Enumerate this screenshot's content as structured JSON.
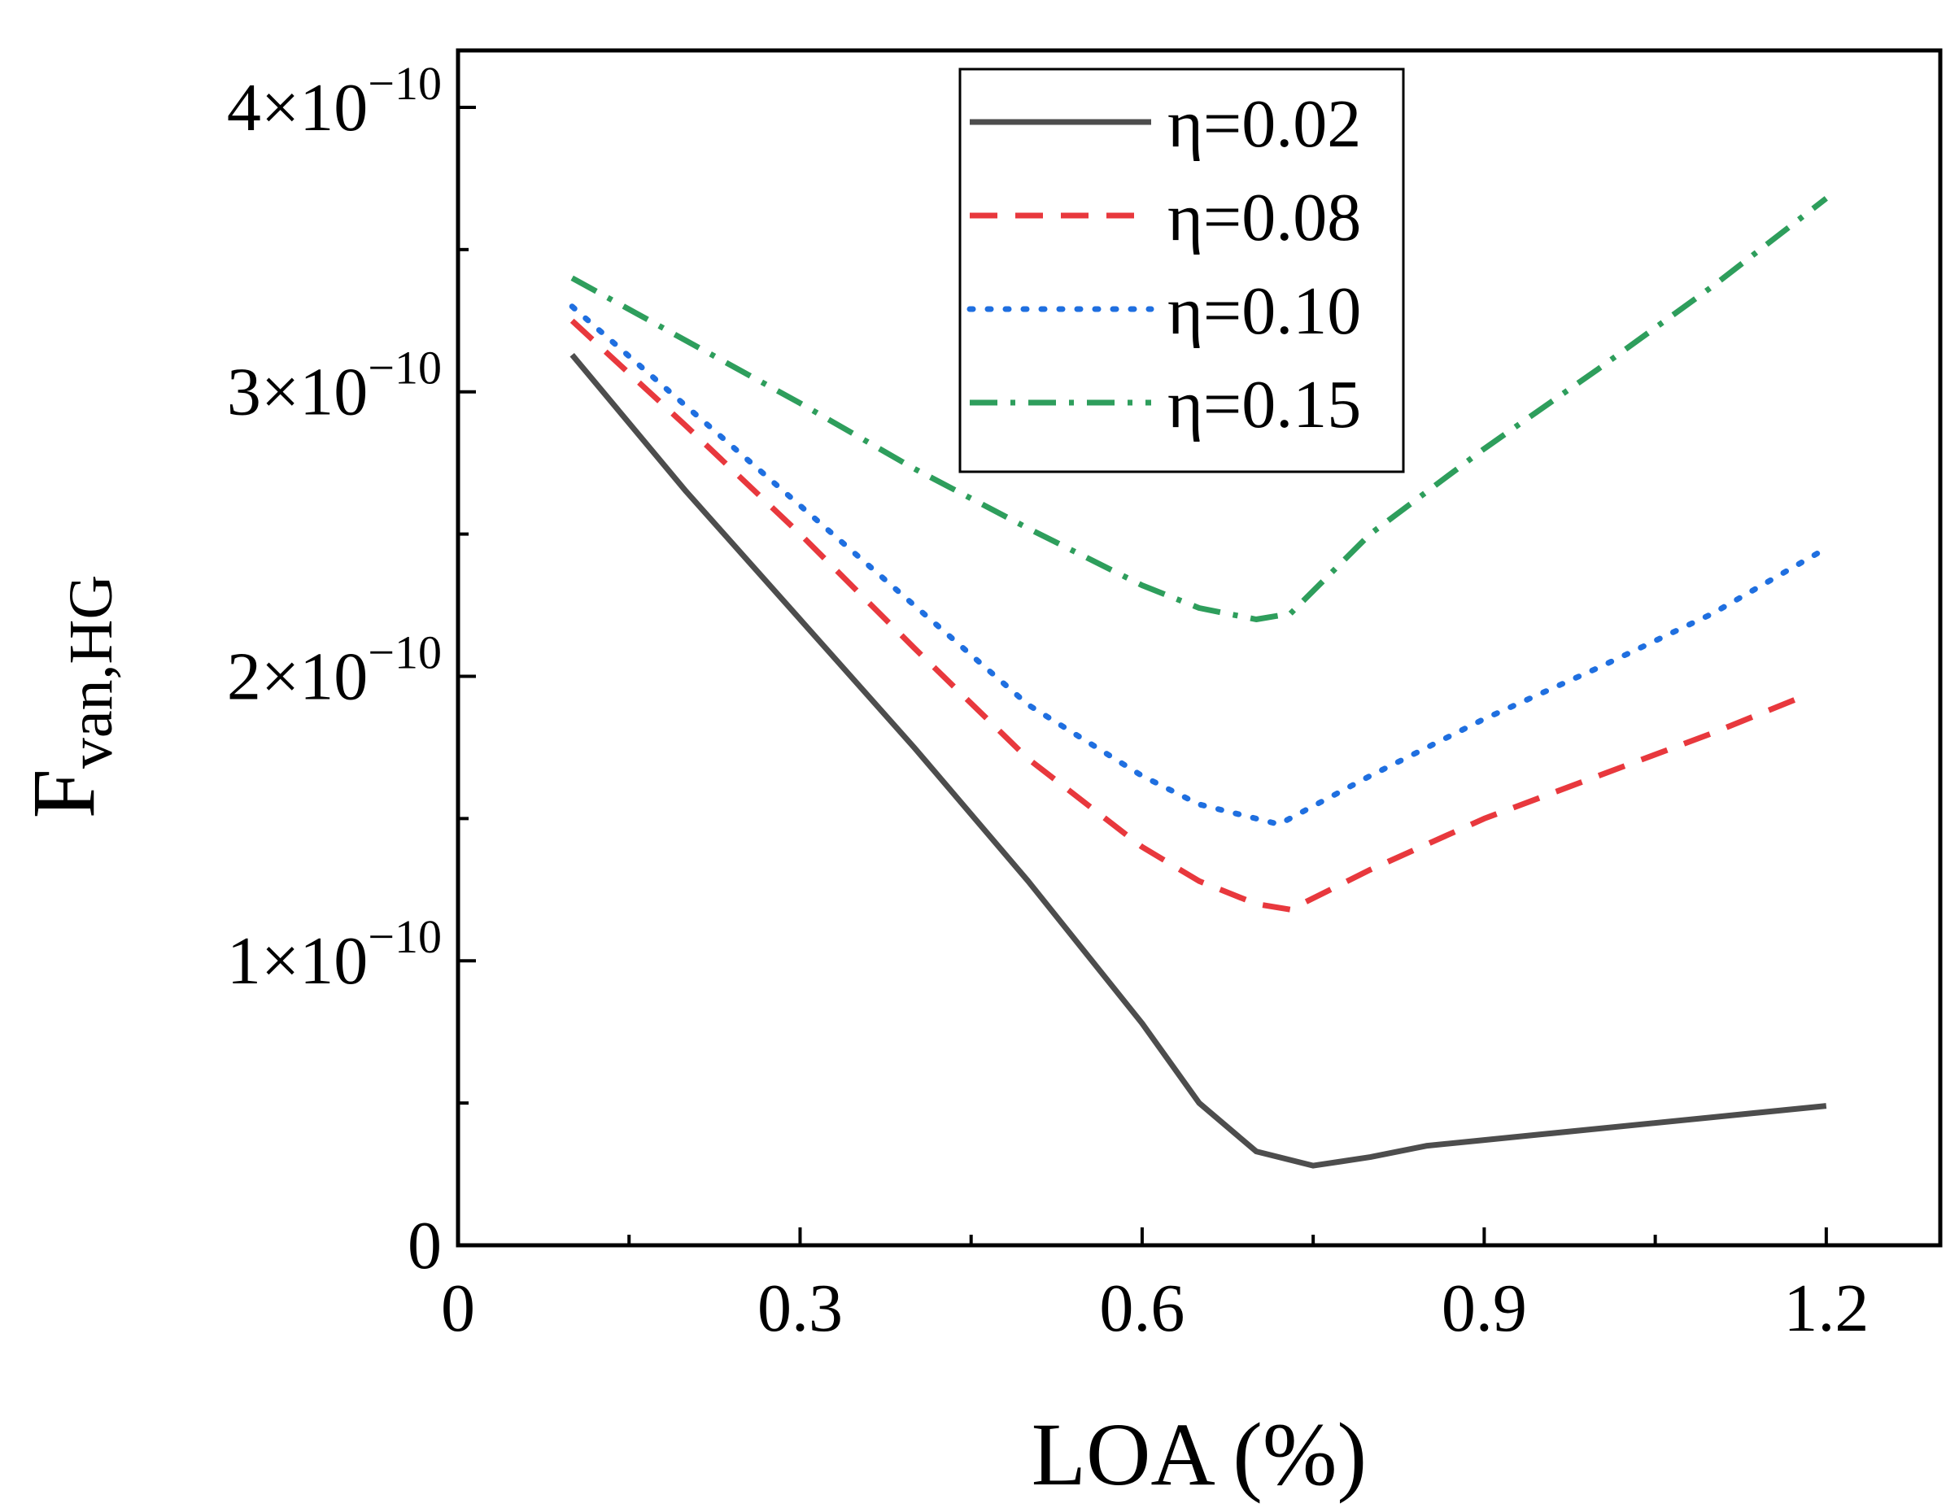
{
  "chart_data": {
    "type": "line",
    "title": "",
    "xlabel": "LOA (%)",
    "ylabel": {
      "main": "F",
      "subscript": "van,HG"
    },
    "xlim": [
      0,
      1.3
    ],
    "ylim": [
      0,
      4.2e-10
    ],
    "xticks": [
      {
        "value": 0,
        "label": "0"
      },
      {
        "value": 0.3,
        "label": "0.3"
      },
      {
        "value": 0.6,
        "label": "0.6"
      },
      {
        "value": 0.9,
        "label": "0.9"
      },
      {
        "value": 1.2,
        "label": "1.2"
      }
    ],
    "xminor": [
      0.15,
      0.45,
      0.75,
      1.05
    ],
    "yticks": [
      {
        "value": 0,
        "mantissa": "0",
        "exponent": ""
      },
      {
        "value": 1e-10,
        "mantissa": "1×10",
        "exponent": "−10"
      },
      {
        "value": 2e-10,
        "mantissa": "2×10",
        "exponent": "−10"
      },
      {
        "value": 3e-10,
        "mantissa": "3×10",
        "exponent": "−10"
      },
      {
        "value": 4e-10,
        "mantissa": "4×10",
        "exponent": "−10"
      }
    ],
    "yminor": [
      5e-11,
      1.5e-10,
      2.5e-10,
      3.5e-10
    ],
    "grid": false,
    "legend_position": "top-center",
    "series": [
      {
        "name": "η=0.02",
        "color": "#4d4d4d",
        "dash": "solid",
        "x": [
          0.1,
          0.2,
          0.3,
          0.4,
          0.5,
          0.6,
          0.65,
          0.7,
          0.75,
          0.8,
          0.85,
          0.9,
          1.0,
          1.1,
          1.2
        ],
        "y": [
          3.13e-10,
          2.65e-10,
          2.2e-10,
          1.75e-10,
          1.28e-10,
          7.8e-11,
          5e-11,
          3.3e-11,
          2.8e-11,
          3.1e-11,
          3.5e-11,
          3.7e-11,
          4.1e-11,
          4.5e-11,
          4.9e-11
        ]
      },
      {
        "name": "η=0.08",
        "color": "#e8383d",
        "dash": "dashed",
        "x": [
          0.1,
          0.2,
          0.3,
          0.4,
          0.5,
          0.6,
          0.65,
          0.7,
          0.73,
          0.8,
          0.9,
          1.0,
          1.1,
          1.18
        ],
        "y": [
          3.25e-10,
          2.88e-10,
          2.5e-10,
          2.1e-10,
          1.71e-10,
          1.4e-10,
          1.28e-10,
          1.2e-10,
          1.18e-10,
          1.32e-10,
          1.5e-10,
          1.65e-10,
          1.8e-10,
          1.93e-10
        ]
      },
      {
        "name": "η=0.10",
        "color": "#1f6fe0",
        "dash": "dotted",
        "x": [
          0.1,
          0.2,
          0.3,
          0.4,
          0.5,
          0.6,
          0.65,
          0.7,
          0.72,
          0.8,
          0.9,
          1.0,
          1.1,
          1.2
        ],
        "y": [
          3.3e-10,
          2.95e-10,
          2.6e-10,
          2.25e-10,
          1.9e-10,
          1.65e-10,
          1.55e-10,
          1.5e-10,
          1.48e-10,
          1.65e-10,
          1.85e-10,
          2.03e-10,
          2.22e-10,
          2.45e-10
        ]
      },
      {
        "name": "η=0.15",
        "color": "#2e9e5c",
        "dash": "dashdot",
        "x": [
          0.1,
          0.2,
          0.3,
          0.4,
          0.5,
          0.6,
          0.65,
          0.7,
          0.73,
          0.8,
          0.9,
          1.0,
          1.1,
          1.2
        ],
        "y": [
          3.4e-10,
          3.18e-10,
          2.96e-10,
          2.73e-10,
          2.52e-10,
          2.32e-10,
          2.24e-10,
          2.2e-10,
          2.22e-10,
          2.5e-10,
          2.8e-10,
          3.08e-10,
          3.37e-10,
          3.68e-10
        ]
      }
    ]
  }
}
